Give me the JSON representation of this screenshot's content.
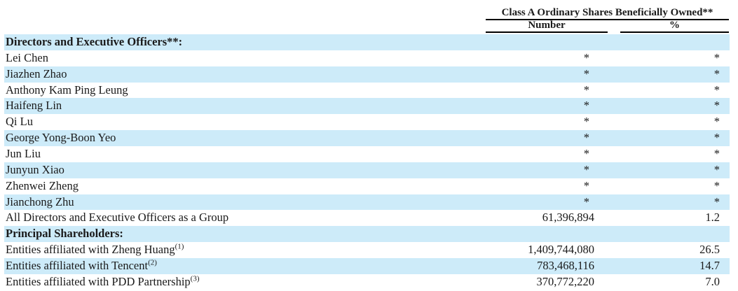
{
  "table": {
    "header": {
      "group_title": "Class A Ordinary Shares Beneficially Owned**",
      "columns": [
        "Number",
        "%"
      ]
    },
    "colors": {
      "stripe": "#cdebf9",
      "text": "#1a1a1a",
      "rule": "#000000"
    },
    "masked_symbol": "*",
    "rows": [
      {
        "label": "Directors and Executive Officers**:",
        "sup": "",
        "number": "",
        "pct": "",
        "bold": true,
        "shaded": true
      },
      {
        "label": "Lei Chen",
        "sup": "",
        "number": "*",
        "pct": "*",
        "bold": false,
        "shaded": false
      },
      {
        "label": "Jiazhen Zhao",
        "sup": "",
        "number": "*",
        "pct": "*",
        "bold": false,
        "shaded": true
      },
      {
        "label": "Anthony Kam Ping Leung",
        "sup": "",
        "number": "*",
        "pct": "*",
        "bold": false,
        "shaded": false
      },
      {
        "label": "Haifeng Lin",
        "sup": "",
        "number": "*",
        "pct": "*",
        "bold": false,
        "shaded": true
      },
      {
        "label": "Qi Lu",
        "sup": "",
        "number": "*",
        "pct": "*",
        "bold": false,
        "shaded": false
      },
      {
        "label": "George Yong-Boon Yeo",
        "sup": "",
        "number": "*",
        "pct": "*",
        "bold": false,
        "shaded": true
      },
      {
        "label": "Jun Liu",
        "sup": "",
        "number": "*",
        "pct": "*",
        "bold": false,
        "shaded": false
      },
      {
        "label": "Junyun Xiao",
        "sup": "",
        "number": "*",
        "pct": "*",
        "bold": false,
        "shaded": true
      },
      {
        "label": "Zhenwei Zheng",
        "sup": "",
        "number": "*",
        "pct": "*",
        "bold": false,
        "shaded": false
      },
      {
        "label": "Jianchong Zhu",
        "sup": "",
        "number": "*",
        "pct": "*",
        "bold": false,
        "shaded": true
      },
      {
        "label": "All Directors and Executive Officers as a Group",
        "sup": "",
        "number": "61,396,894",
        "pct": "1.2",
        "bold": false,
        "shaded": false
      },
      {
        "label": "Principal Shareholders:",
        "sup": "",
        "number": "",
        "pct": "",
        "bold": true,
        "shaded": true
      },
      {
        "label": "Entities affiliated with Zheng Huang",
        "sup": "(1)",
        "number": "1,409,744,080",
        "pct": "26.5",
        "bold": false,
        "shaded": false
      },
      {
        "label": "Entities affiliated with Tencent",
        "sup": "(2)",
        "number": "783,468,116",
        "pct": "14.7",
        "bold": false,
        "shaded": true
      },
      {
        "label": "Entities affiliated with PDD Partnership",
        "sup": "(3)",
        "number": "370,772,220",
        "pct": "7.0",
        "bold": false,
        "shaded": false
      }
    ]
  }
}
